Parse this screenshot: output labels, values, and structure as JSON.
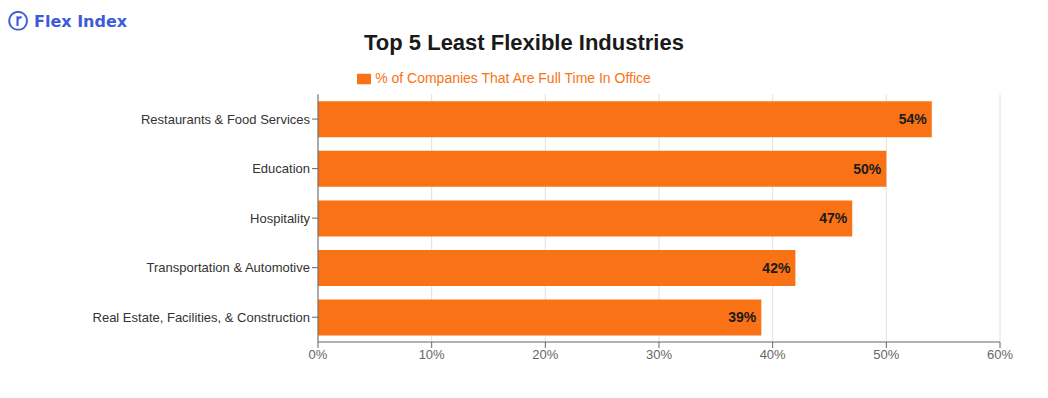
{
  "chart_data": {
    "type": "bar",
    "title": "Top 5 Least Flexible Industries",
    "orientation": "horizontal",
    "categories": [
      "Real Estate, Facilities, & Construction",
      "Transportation & Automotive",
      "Hospitality",
      "Education",
      "Restaurants & Food Services"
    ],
    "series": [
      {
        "name": "% of Companies That Are Full Time In Office",
        "color": "#F97316",
        "values": [
          39,
          42,
          47,
          50,
          54
        ],
        "value_labels": [
          "39%",
          "42%",
          "47%",
          "50%",
          "54%"
        ]
      }
    ],
    "data_labels": true,
    "xlim": [
      0,
      60
    ],
    "xticks": [
      {
        "value": 0,
        "label": "0%"
      },
      {
        "value": 10,
        "label": "10%"
      },
      {
        "value": 20,
        "label": "20%"
      },
      {
        "value": 30,
        "label": "30%"
      },
      {
        "value": 40,
        "label": "40%"
      },
      {
        "value": 50,
        "label": "50%"
      },
      {
        "value": 60,
        "label": "60%"
      }
    ],
    "grid": true,
    "legend": "top",
    "annotations": [
      {
        "text": "ⓡ",
        "color": "#3B5BDB"
      },
      {
        "text": "Flex Index",
        "color": "#3B5BDB"
      }
    ]
  }
}
